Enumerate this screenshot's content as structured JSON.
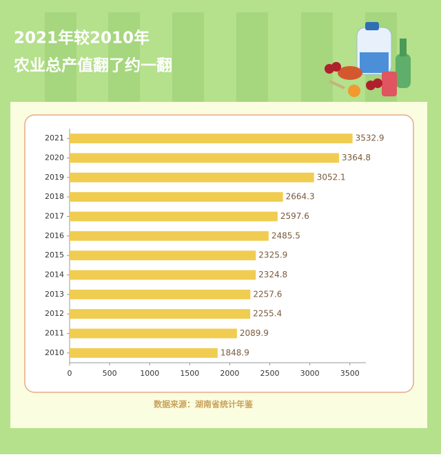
{
  "chart_data": {
    "type": "bar",
    "orientation": "horizontal",
    "title": "2021年较2010年",
    "subtitle": "农业总产值翻了约一翻",
    "source": "数据来源：湖南省统计年鉴",
    "categories": [
      "2021",
      "2020",
      "2019",
      "2018",
      "2017",
      "2016",
      "2015",
      "2014",
      "2013",
      "2012",
      "2011",
      "2010"
    ],
    "values": [
      3532.9,
      3364.8,
      3052.1,
      2664.3,
      2597.6,
      2485.5,
      2325.9,
      2324.8,
      2257.6,
      2255.4,
      2089.9,
      1848.9
    ],
    "color": "#f0cd50",
    "xlim": [
      0,
      3700
    ],
    "xticks": [
      0,
      500,
      1000,
      1500,
      2000,
      2500,
      3000,
      3500
    ],
    "grid": false
  }
}
